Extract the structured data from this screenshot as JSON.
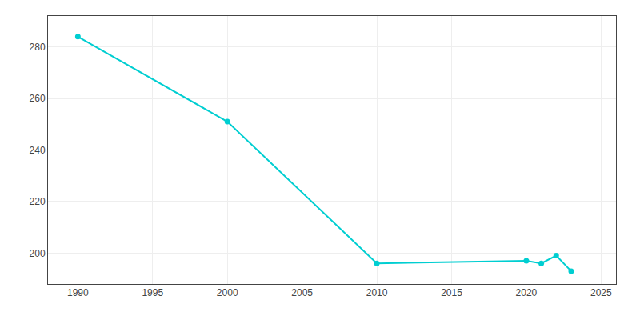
{
  "chart_data": {
    "type": "line",
    "x": [
      1990,
      2000,
      2010,
      2020,
      2021,
      2022,
      2023
    ],
    "values": [
      284,
      251,
      196,
      197,
      196,
      199,
      193
    ],
    "color": "#00CED1",
    "marker": "circle",
    "xlim": [
      1988,
      2026
    ],
    "ylim": [
      188,
      292
    ],
    "xticks": [
      1990,
      1995,
      2000,
      2005,
      2010,
      2015,
      2020,
      2025
    ],
    "yticks": [
      200,
      220,
      240,
      260,
      280
    ],
    "grid": true
  }
}
